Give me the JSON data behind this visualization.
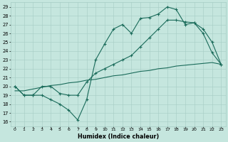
{
  "xlabel": "Humidex (Indice chaleur)",
  "background_color": "#c5e6de",
  "grid_color": "#a5ccc4",
  "line_color": "#1a6b5a",
  "xlim": [
    -0.5,
    23.5
  ],
  "ylim": [
    15.5,
    29.5
  ],
  "xticks": [
    0,
    1,
    2,
    3,
    4,
    5,
    6,
    7,
    8,
    9,
    10,
    11,
    12,
    13,
    14,
    15,
    16,
    17,
    18,
    19,
    20,
    21,
    22,
    23
  ],
  "yticks": [
    16,
    17,
    18,
    19,
    20,
    21,
    22,
    23,
    24,
    25,
    26,
    27,
    28,
    29
  ],
  "line1_x": [
    0,
    1,
    2,
    3,
    4,
    5,
    6,
    7,
    8,
    9,
    10,
    11,
    12,
    13,
    14,
    15,
    16,
    17,
    18,
    19,
    20,
    21,
    22,
    23
  ],
  "line1_y": [
    20,
    19,
    19,
    19,
    18.5,
    18,
    17.3,
    16.2,
    18.5,
    23,
    24.8,
    26.5,
    27,
    26,
    27.7,
    27.8,
    28.2,
    29,
    28.7,
    27,
    27.2,
    26,
    23.8,
    22.5
  ],
  "line2_x": [
    0,
    1,
    2,
    3,
    4,
    5,
    6,
    7,
    8,
    9,
    10,
    11,
    12,
    13,
    14,
    15,
    16,
    17,
    18,
    19,
    20,
    21,
    22,
    23
  ],
  "line2_y": [
    20,
    19,
    19,
    20,
    20,
    19.2,
    19,
    19,
    20.5,
    21.5,
    22,
    22.5,
    23,
    23.5,
    24.5,
    25.5,
    26.5,
    27.5,
    27.5,
    27.3,
    27.2,
    26.5,
    25,
    22.5
  ],
  "line3_x": [
    0,
    1,
    2,
    3,
    4,
    5,
    6,
    7,
    8,
    9,
    10,
    11,
    12,
    13,
    14,
    15,
    16,
    17,
    18,
    19,
    20,
    21,
    22,
    23
  ],
  "line3_y": [
    19.5,
    19.5,
    19.7,
    19.9,
    20.1,
    20.2,
    20.4,
    20.5,
    20.7,
    20.8,
    21.0,
    21.2,
    21.3,
    21.5,
    21.7,
    21.8,
    22.0,
    22.1,
    22.3,
    22.4,
    22.5,
    22.6,
    22.7,
    22.5
  ]
}
